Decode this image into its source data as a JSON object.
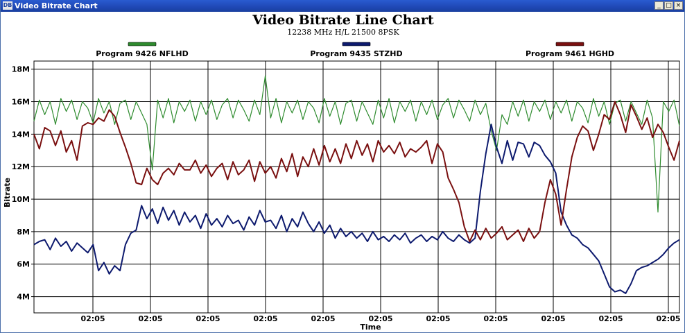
{
  "window": {
    "title": "Video Bitrate Chart",
    "icon": "dvb-app-icon",
    "buttons": [
      "_",
      "□",
      "×"
    ]
  },
  "chart_data": {
    "type": "line",
    "title": "Video Bitrate Line Chart",
    "subtitle": "12238 MHz H/L 21500 8PSK",
    "xlabel": "Time",
    "ylabel": "Bitrate",
    "x_tick_labels": [
      "02:05",
      "02:05",
      "02:05",
      "02:05",
      "02:05",
      "02:05",
      "02:05",
      "02:05",
      "02:05",
      "02:05",
      "02:05",
      "02:05"
    ],
    "y_tick_labels": [
      "4M",
      "6M",
      "8M",
      "10M",
      "12M",
      "14M",
      "16M",
      "18M"
    ],
    "ylim": [
      3,
      18.5
    ],
    "y_unit": "Mbps",
    "x": [
      0,
      1,
      2,
      3,
      4,
      5,
      6,
      7,
      8,
      9,
      10,
      11,
      12,
      13,
      14,
      15,
      16,
      17,
      18,
      19,
      20,
      21,
      22,
      23,
      24,
      25,
      26,
      27,
      28,
      29,
      30,
      31,
      32,
      33,
      34,
      35,
      36,
      37,
      38,
      39,
      40,
      41,
      42,
      43,
      44,
      45,
      46,
      47,
      48,
      49,
      50,
      51,
      52,
      53,
      54,
      55,
      56,
      57,
      58,
      59,
      60,
      61,
      62,
      63,
      64,
      65,
      66,
      67,
      68,
      69,
      70,
      71,
      72,
      73,
      74,
      75,
      76,
      77,
      78,
      79,
      80,
      81,
      82,
      83,
      84,
      85,
      86,
      87,
      88,
      89,
      90,
      91,
      92,
      93,
      94,
      95,
      96,
      97,
      98,
      99,
      100,
      101,
      102,
      103,
      104,
      105,
      106,
      107,
      108,
      109,
      110,
      111,
      112,
      113,
      114,
      115,
      116,
      117,
      118,
      119,
      120
    ],
    "legend_position": "top",
    "grid": true,
    "series": [
      {
        "name": "Program 9426 NFLHD",
        "color": "#2e8b2e",
        "values": [
          14.8,
          16.1,
          15.2,
          16.0,
          14.6,
          16.2,
          15.4,
          16.1,
          14.9,
          16.0,
          15.6,
          14.7,
          16.2,
          15.3,
          16.0,
          14.6,
          15.9,
          16.1,
          14.9,
          16.0,
          15.3,
          14.6,
          11.8,
          16.1,
          15.0,
          16.2,
          14.7,
          16.0,
          15.4,
          16.1,
          14.8,
          16.0,
          15.2,
          16.1,
          14.9,
          15.8,
          16.2,
          15.0,
          16.1,
          15.5,
          14.8,
          16.1,
          15.2,
          17.6,
          15.0,
          16.2,
          14.7,
          16.0,
          15.3,
          16.1,
          14.9,
          16.0,
          15.6,
          14.7,
          16.2,
          15.1,
          16.0,
          14.6,
          15.9,
          16.1,
          14.8,
          16.0,
          15.3,
          14.6,
          16.1,
          15.0,
          16.2,
          14.7,
          16.0,
          15.4,
          16.1,
          14.8,
          16.0,
          15.2,
          16.1,
          14.9,
          15.8,
          16.2,
          15.0,
          16.1,
          15.5,
          14.8,
          16.1,
          15.2,
          15.9,
          14.2,
          13.0,
          15.2,
          14.6,
          16.0,
          15.1,
          16.1,
          14.8,
          16.0,
          15.4,
          16.1,
          14.9,
          16.0,
          15.3,
          16.1,
          14.8,
          16.0,
          15.6,
          14.7,
          16.2,
          15.1,
          16.0,
          14.6,
          15.9,
          16.1,
          14.8,
          16.0,
          15.3,
          14.6,
          16.1,
          15.0,
          9.2,
          16.0,
          15.4,
          16.1,
          14.5
        ]
      },
      {
        "name": "Program 9435 STZHD",
        "color": "#0d1a6e",
        "values": [
          7.2,
          7.4,
          7.5,
          6.9,
          7.6,
          7.1,
          7.4,
          6.8,
          7.3,
          7.0,
          6.7,
          7.2,
          5.6,
          6.1,
          5.4,
          5.9,
          5.6,
          7.2,
          7.9,
          8.1,
          9.6,
          8.8,
          9.4,
          8.5,
          9.5,
          8.7,
          9.3,
          8.4,
          9.2,
          8.6,
          9.0,
          8.2,
          9.1,
          8.4,
          8.8,
          8.3,
          9.0,
          8.5,
          8.7,
          8.1,
          8.9,
          8.4,
          9.3,
          8.6,
          8.7,
          8.2,
          9.0,
          8.0,
          8.8,
          8.3,
          9.2,
          8.5,
          8.0,
          8.6,
          7.9,
          8.4,
          7.6,
          8.2,
          7.7,
          8.0,
          7.6,
          7.9,
          7.4,
          8.0,
          7.5,
          7.7,
          7.4,
          7.8,
          7.5,
          7.9,
          7.3,
          7.6,
          7.8,
          7.4,
          7.7,
          7.5,
          8.0,
          7.6,
          7.4,
          7.8,
          7.5,
          7.3,
          7.6,
          10.5,
          12.8,
          14.6,
          13.2,
          12.2,
          13.6,
          12.4,
          13.5,
          13.4,
          12.6,
          13.5,
          13.3,
          12.7,
          12.3,
          11.6,
          9.2,
          8.4,
          7.8,
          7.6,
          7.2,
          7.0,
          6.6,
          6.2,
          5.4,
          4.6,
          4.3,
          4.4,
          4.2,
          4.8,
          5.6,
          5.8,
          5.9,
          6.1,
          6.3,
          6.6,
          7.0,
          7.3,
          7.5
        ]
      },
      {
        "name": "Program 9461 HGHD",
        "color": "#7a1010",
        "values": [
          14.0,
          13.1,
          14.4,
          14.2,
          13.3,
          14.2,
          12.9,
          13.6,
          12.4,
          14.5,
          14.7,
          14.6,
          15.0,
          14.8,
          15.5,
          15.1,
          14.1,
          13.2,
          12.2,
          11.0,
          10.9,
          11.9,
          11.2,
          10.9,
          11.6,
          11.9,
          11.5,
          12.2,
          11.8,
          11.8,
          12.4,
          11.6,
          12.1,
          11.4,
          11.9,
          12.2,
          11.2,
          12.3,
          11.5,
          11.8,
          12.4,
          11.1,
          12.3,
          11.6,
          12.0,
          11.3,
          12.5,
          11.7,
          12.8,
          11.4,
          12.6,
          12.0,
          13.1,
          12.1,
          13.3,
          12.3,
          13.1,
          12.2,
          13.4,
          12.5,
          13.6,
          12.7,
          13.4,
          12.3,
          13.6,
          12.9,
          13.3,
          12.8,
          13.5,
          12.6,
          13.1,
          12.9,
          13.2,
          13.6,
          12.2,
          13.4,
          12.9,
          11.3,
          10.6,
          9.8,
          8.3,
          7.4,
          8.1,
          7.5,
          8.2,
          7.6,
          7.9,
          8.3,
          7.5,
          7.8,
          8.1,
          7.4,
          8.2,
          7.6,
          8.0,
          9.8,
          11.2,
          10.3,
          8.4,
          10.6,
          12.6,
          13.8,
          14.5,
          14.2,
          13.0,
          14.0,
          15.2,
          14.9,
          16.0,
          15.2,
          14.1,
          15.8,
          15.1,
          14.3,
          15.0,
          13.8,
          14.6,
          14.1,
          13.2,
          12.4,
          13.6
        ]
      }
    ]
  }
}
